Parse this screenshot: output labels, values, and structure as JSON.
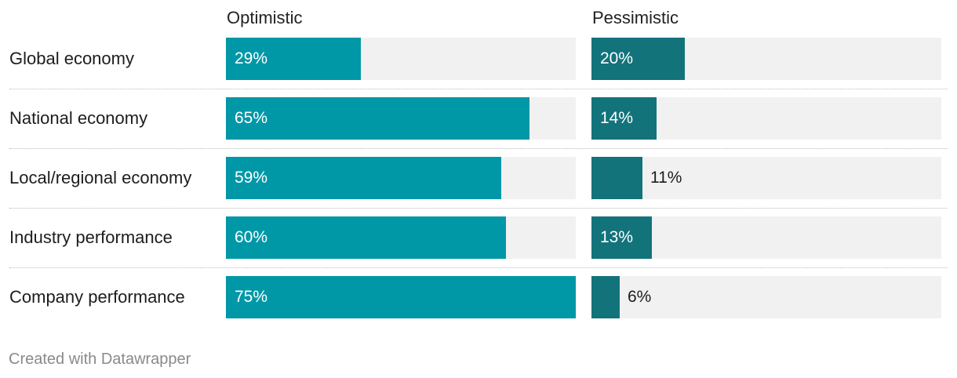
{
  "chart_data": {
    "type": "bar",
    "orientation": "horizontal",
    "categories": [
      "Global economy",
      "National economy",
      "Local/regional economy",
      "Industry performance",
      "Company performance"
    ],
    "series": [
      {
        "name": "Optimistic",
        "values": [
          29,
          65,
          59,
          60,
          75
        ],
        "labels": [
          "29%",
          "65%",
          "59%",
          "60%",
          "75%"
        ],
        "color": "#0097a7"
      },
      {
        "name": "Pessimistic",
        "values": [
          20,
          14,
          11,
          13,
          6
        ],
        "labels": [
          "20%",
          "14%",
          "11%",
          "13%",
          "6%"
        ],
        "color": "#12737b"
      }
    ],
    "xlim": [
      0,
      75
    ],
    "background_bar_color": "#f1f1f1",
    "label_color_inside": "#ffffff",
    "label_color_outside": "#1d1d1d"
  },
  "footer": {
    "credit": "Created with Datawrapper"
  }
}
